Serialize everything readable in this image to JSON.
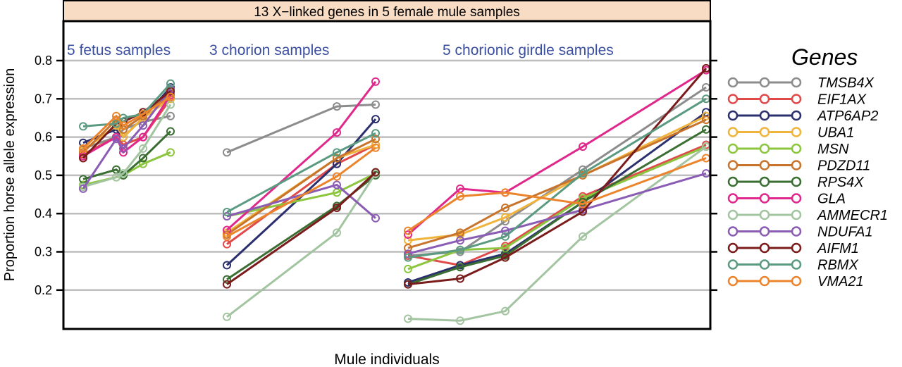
{
  "chart_data": {
    "type": "line",
    "title": "13 X−linked genes in 5 female mule samples",
    "xlabel": "Mule individuals",
    "ylabel": "Proportion horse allele expression",
    "ylim": [
      0.1,
      0.9
    ],
    "yticks": [
      "0.2",
      "0.3",
      "0.4",
      "0.5",
      "0.6",
      "0.7",
      "0.8"
    ],
    "grid": true,
    "legend_title": "Genes",
    "legend_placement": "right",
    "groups": [
      {
        "label": "5 fetus samples",
        "n_points": 5
      },
      {
        "label": "3 chorion samples",
        "n_points": 3
      },
      {
        "label": "5 chorionic girdle samples",
        "n_points": 5
      }
    ],
    "group_label_color": "#3a4fa0",
    "title_bg": "#f8dcc4",
    "series": [
      {
        "name": "TMSB4X",
        "color": "#8c8c8c",
        "fetus": [
          0.57,
          0.6,
          0.62,
          0.64,
          0.655
        ],
        "chorion": [
          0.56,
          0.68,
          0.685
        ],
        "girdle": [
          0.29,
          0.3,
          0.38,
          0.515,
          0.73
        ]
      },
      {
        "name": "EIF1AX",
        "color": "#e04a4a",
        "fetus": [
          0.555,
          0.6,
          0.58,
          0.6,
          0.7
        ],
        "chorion": [
          0.32,
          0.53,
          0.58
        ],
        "girdle": [
          0.29,
          0.265,
          0.315,
          0.445,
          0.58
        ]
      },
      {
        "name": "ATP6AP2",
        "color": "#2b2f6e",
        "fetus": [
          0.585,
          0.62,
          0.6,
          0.65,
          0.73
        ],
        "chorion": [
          0.265,
          0.53,
          0.647
        ],
        "girdle": [
          0.22,
          0.265,
          0.295,
          0.43,
          0.665
        ]
      },
      {
        "name": "UBA1",
        "color": "#f0b43c",
        "fetus": [
          0.565,
          0.63,
          0.6,
          0.65,
          0.7
        ],
        "chorion": [
          0.35,
          0.545,
          0.58
        ],
        "girdle": [
          0.33,
          0.345,
          0.39,
          0.5,
          0.655
        ]
      },
      {
        "name": "MSN",
        "color": "#8cc63f",
        "fetus": [
          0.475,
          0.495,
          0.5,
          0.53,
          0.56
        ],
        "chorion": [
          0.393,
          0.455,
          0.505
        ],
        "girdle": [
          0.255,
          0.305,
          0.31,
          0.44,
          0.575
        ]
      },
      {
        "name": "PDZD11",
        "color": "#c8742c",
        "fetus": [
          0.56,
          0.645,
          0.62,
          0.655,
          0.715
        ],
        "chorion": [
          0.345,
          0.545,
          0.595
        ],
        "girdle": [
          0.31,
          0.35,
          0.415,
          0.5,
          0.645
        ]
      },
      {
        "name": "RPS4X",
        "color": "#3a6e32",
        "fetus": [
          0.49,
          0.515,
          0.5,
          0.545,
          0.615
        ],
        "chorion": [
          0.228,
          0.42,
          0.5
        ],
        "girdle": [
          0.215,
          0.26,
          0.29,
          0.43,
          0.62
        ]
      },
      {
        "name": "GLA",
        "color": "#e0288c",
        "fetus": [
          0.55,
          0.6,
          0.56,
          0.6,
          0.71
        ],
        "chorion": [
          0.357,
          0.612,
          0.745
        ],
        "girdle": [
          0.345,
          0.465,
          0.455,
          0.575,
          0.775
        ]
      },
      {
        "name": "AMMECR1",
        "color": "#a3c4a0",
        "fetus": [
          0.47,
          0.495,
          0.505,
          0.57,
          0.685
        ],
        "chorion": [
          0.13,
          0.35,
          0.505
        ],
        "girdle": [
          0.125,
          0.12,
          0.145,
          0.34,
          0.575
        ]
      },
      {
        "name": "NDUFA1",
        "color": "#8a5cb4",
        "fetus": [
          0.465,
          0.595,
          0.57,
          0.63,
          0.725
        ],
        "chorion": [
          0.393,
          0.475,
          0.388
        ],
        "girdle": [
          0.295,
          0.33,
          0.355,
          0.41,
          0.505
        ]
      },
      {
        "name": "AIFM1",
        "color": "#7a1c1c",
        "fetus": [
          0.545,
          0.635,
          0.64,
          0.665,
          0.72
        ],
        "chorion": [
          0.215,
          0.415,
          0.508
        ],
        "girdle": [
          0.215,
          0.23,
          0.285,
          0.405,
          0.78
        ]
      },
      {
        "name": "RBMX",
        "color": "#5a9a80",
        "fetus": [
          0.628,
          0.635,
          0.65,
          0.66,
          0.74
        ],
        "chorion": [
          0.404,
          0.56,
          0.61
        ],
        "girdle": [
          0.285,
          0.305,
          0.34,
          0.505,
          0.7
        ]
      },
      {
        "name": "VMA21",
        "color": "#ec842c",
        "fetus": [
          0.57,
          0.655,
          0.63,
          0.66,
          0.705
        ],
        "chorion": [
          0.34,
          0.497,
          0.572
        ],
        "girdle": [
          0.355,
          0.445,
          0.455,
          0.425,
          0.545
        ]
      }
    ]
  }
}
